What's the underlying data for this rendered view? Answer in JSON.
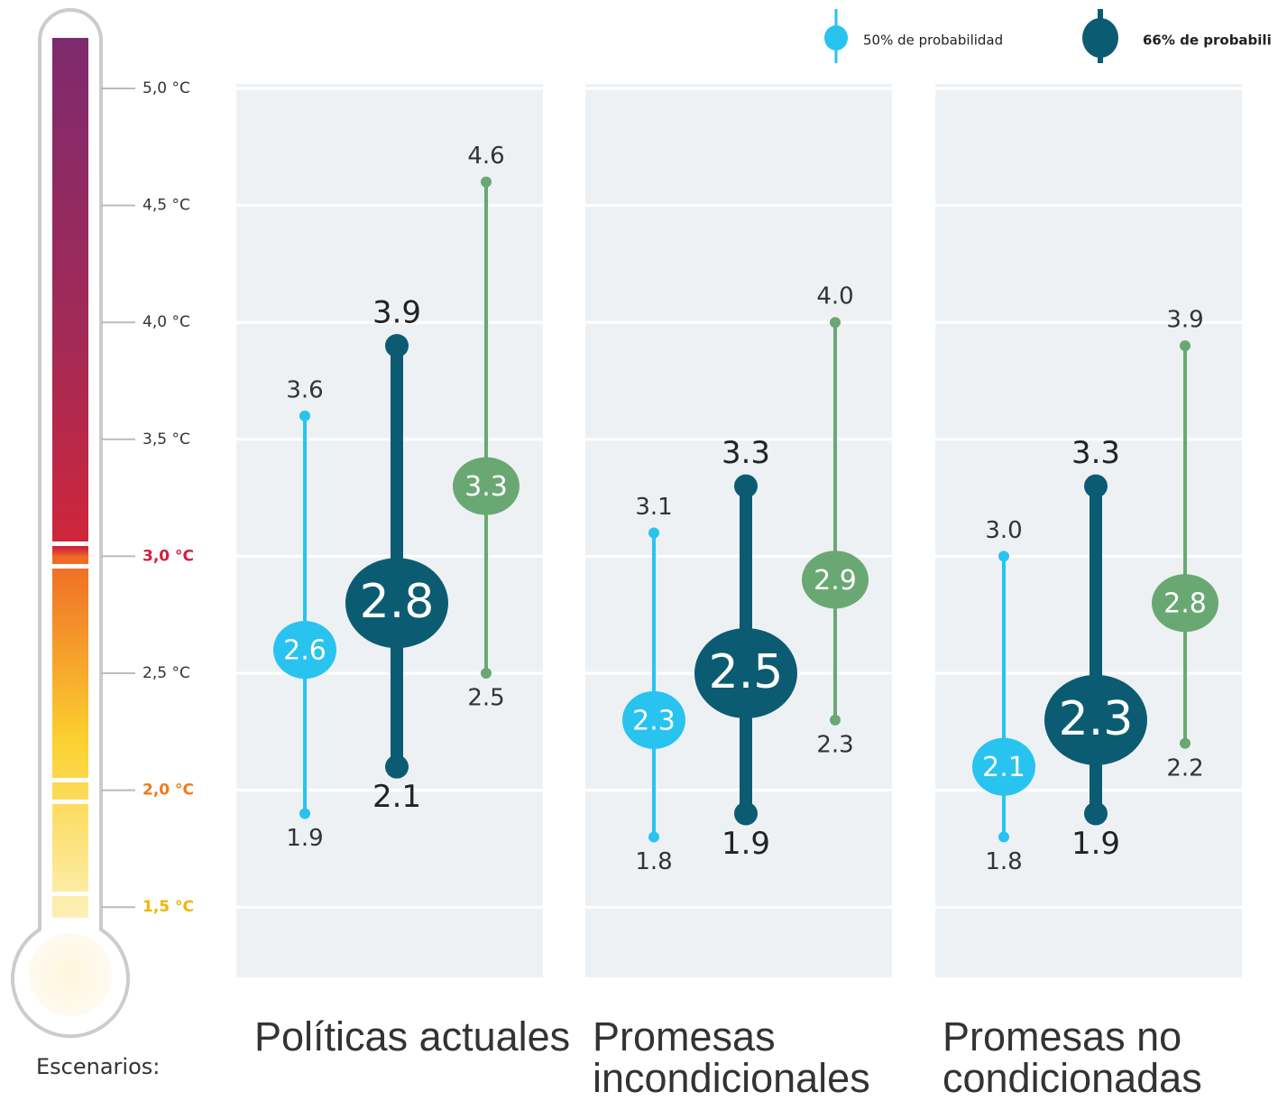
{
  "chart_data": {
    "type": "range",
    "categories": [
      "Políticas actuales",
      "Promesas incondicionales",
      "Promesas no condicionadas"
    ],
    "axis_caption": "Escenarios:",
    "ylim": [
      1.2,
      5.0
    ],
    "yticks": [
      {
        "value": 1.5,
        "label": "1,5 °C",
        "color": "#f2b400"
      },
      {
        "value": 2.0,
        "label": "2,0 °C",
        "color": "#f07a1a"
      },
      {
        "value": 2.5,
        "label": "2,5 °C"
      },
      {
        "value": 3.0,
        "label": "3,0 °C",
        "color": "#d0203a"
      },
      {
        "value": 3.5,
        "label": "3,5 °C"
      },
      {
        "value": 4.0,
        "label": "4,0 °C"
      },
      {
        "value": 4.5,
        "label": "4,5 °C"
      },
      {
        "value": 5.0,
        "label": "5,0 °C"
      }
    ],
    "grid": true,
    "legend": "top-right",
    "series": [
      {
        "name": "50% de probabilidad",
        "color": "#29c3f0",
        "low": [
          1.9,
          1.8,
          1.8
        ],
        "mid": [
          2.6,
          2.3,
          2.1
        ],
        "high": [
          3.6,
          3.1,
          3.0
        ],
        "high_value_labels": [
          "3.6",
          "3.1",
          "3.0"
        ]
      },
      {
        "name": "66% de probabili",
        "color": "#0b5c73",
        "low": [
          2.1,
          1.9,
          1.9
        ],
        "mid": [
          2.8,
          2.5,
          2.3
        ],
        "high": [
          3.9,
          3.3,
          3.3
        ]
      },
      {
        "color": "#6aa873",
        "low": [
          2.5,
          2.3,
          2.2
        ],
        "mid": [
          3.3,
          2.9,
          2.8
        ],
        "high": [
          4.6,
          4.0,
          3.9
        ],
        "high_value_labels": [
          "4.6",
          "4.0",
          "3.9"
        ]
      }
    ]
  }
}
